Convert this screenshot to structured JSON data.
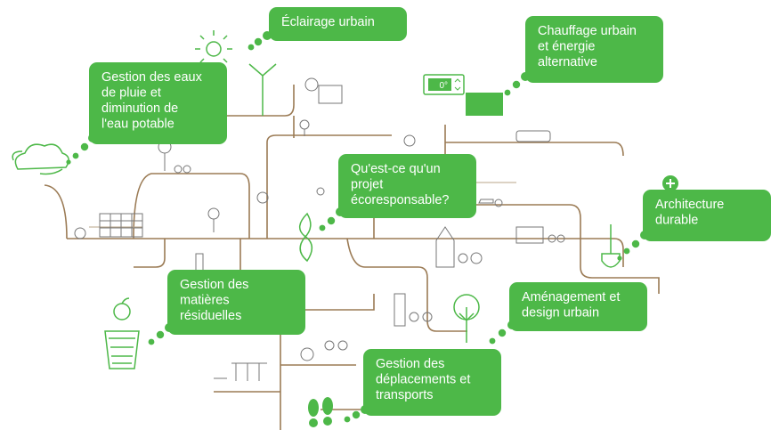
{
  "nodes": [
    {
      "lines": [
        "Éclairage urbain"
      ]
    },
    {
      "lines": [
        "Chauffage urbain",
        "et énergie",
        "alternative"
      ]
    },
    {
      "lines": [
        "Gestion des eaux",
        "de pluie et",
        "diminution de",
        "l'eau potable"
      ]
    },
    {
      "lines": [
        "Qu'est-ce qu'un",
        "projet",
        "écoresponsable?"
      ]
    },
    {
      "lines": [
        "Architecture",
        "durable"
      ]
    },
    {
      "lines": [
        "Aménagement et",
        "design urbain"
      ]
    },
    {
      "lines": [
        "Gestion des",
        "matières",
        "résiduelles"
      ]
    },
    {
      "lines": [
        "Gestion des",
        "déplacements et",
        "transports"
      ]
    }
  ],
  "thermostat": "0°"
}
